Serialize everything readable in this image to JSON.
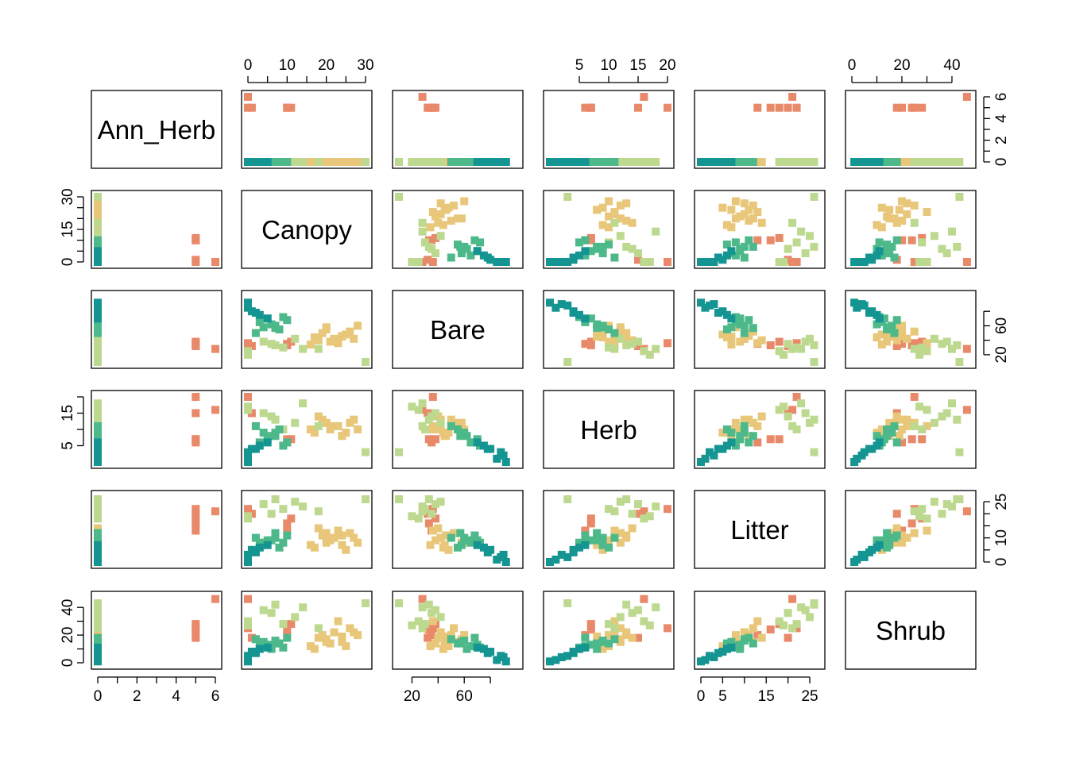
{
  "colors": {
    "orange": "#E8896A",
    "yellow": "#E8C77A",
    "light_green": "#BDD98F",
    "green": "#4DB98A",
    "teal": "#159592"
  },
  "chart_data": {
    "type": "scatter",
    "variables": [
      "Ann_Herb",
      "Canopy",
      "Bare",
      "Herb",
      "Litter",
      "Shrub"
    ],
    "ranges": {
      "Ann_Herb": [
        0,
        6
      ],
      "Canopy": [
        0,
        30
      ],
      "Bare": [
        10,
        100
      ],
      "Herb": [
        0,
        20
      ],
      "Litter": [
        0,
        27
      ],
      "Shrub": [
        0,
        47
      ]
    },
    "ticks": {
      "Ann_Herb": {
        "values": [
          0,
          1,
          2,
          3,
          4,
          5,
          6
        ],
        "labels": [
          "0",
          "",
          "2",
          "",
          "4",
          "",
          "6"
        ]
      },
      "Canopy": {
        "values": [
          0,
          5,
          10,
          15,
          20,
          25,
          30
        ],
        "labels": [
          "0",
          "",
          "10",
          "",
          "20",
          "",
          "30"
        ],
        "left_labels": [
          "0",
          "",
          "",
          "15",
          "",
          "",
          "30"
        ]
      },
      "Bare": {
        "values": [
          20,
          40,
          60,
          80
        ],
        "labels": [
          "20",
          "",
          "60",
          ""
        ]
      },
      "Herb": {
        "values": [
          5,
          10,
          15,
          20
        ],
        "labels": [
          "5",
          "10",
          "15",
          "20"
        ],
        "left_labels": [
          "5",
          "",
          "15",
          ""
        ]
      },
      "Litter": {
        "values": [
          0,
          5,
          10,
          15,
          20,
          25
        ],
        "labels": [
          "0",
          "5",
          "",
          "15",
          "",
          "25"
        ],
        "right_labels": [
          "0",
          "",
          "10",
          "",
          "",
          "25"
        ]
      },
      "Shrub": {
        "values": [
          0,
          10,
          20,
          30,
          40
        ],
        "labels": [
          "0",
          "",
          "20",
          "",
          "40"
        ]
      }
    },
    "groups": [
      {
        "color": "orange",
        "points": [
          [
            5,
            10,
            35,
            6,
            13,
            20
          ],
          [
            5,
            10,
            33,
            7,
            16,
            24
          ],
          [
            5,
            11,
            38,
            7,
            18,
            28
          ],
          [
            5,
            1,
            32,
            15,
            20,
            18
          ],
          [
            5,
            0,
            36,
            20,
            22,
            25
          ],
          [
            6,
            0,
            28,
            16,
            21,
            46
          ]
        ]
      },
      {
        "color": "yellow",
        "points": [
          [
            0,
            28,
            60,
            10,
            8,
            20
          ],
          [
            0,
            20,
            55,
            12,
            12,
            15
          ],
          [
            0,
            25,
            48,
            9,
            5,
            12
          ],
          [
            0,
            22,
            42,
            11,
            10,
            22
          ],
          [
            0,
            18,
            40,
            14,
            14,
            18
          ],
          [
            0,
            24,
            45,
            8,
            7,
            15
          ],
          [
            0,
            19,
            50,
            13,
            11,
            20
          ],
          [
            0,
            21,
            38,
            10,
            9,
            14
          ],
          [
            0,
            26,
            52,
            12,
            12,
            25
          ],
          [
            0,
            17,
            44,
            9,
            6,
            10
          ],
          [
            0,
            23,
            36,
            11,
            13,
            30
          ],
          [
            0,
            27,
            42,
            13,
            10,
            22
          ],
          [
            0,
            20,
            58,
            12,
            8,
            17
          ],
          [
            0,
            16,
            34,
            10,
            7,
            12
          ],
          [
            0,
            24,
            46,
            8,
            11,
            19
          ]
        ]
      },
      {
        "color": "light_green",
        "points": [
          [
            0,
            30,
            10,
            3,
            26,
            43
          ],
          [
            0,
            14,
            28,
            18,
            23,
            40
          ],
          [
            0,
            6,
            35,
            14,
            20,
            36
          ],
          [
            0,
            0,
            25,
            16,
            18,
            30
          ],
          [
            0,
            12,
            42,
            12,
            25,
            33
          ],
          [
            0,
            9,
            30,
            10,
            22,
            28
          ],
          [
            0,
            4,
            38,
            15,
            24,
            38
          ],
          [
            0,
            0,
            20,
            17,
            19,
            27
          ],
          [
            0,
            18,
            28,
            11,
            21,
            25
          ],
          [
            0,
            7,
            33,
            13,
            26,
            42
          ]
        ]
      },
      {
        "color": "green",
        "points": [
          [
            0,
            5,
            70,
            7,
            9,
            13
          ],
          [
            0,
            7,
            60,
            9,
            10,
            16
          ],
          [
            0,
            3,
            65,
            6,
            8,
            12
          ],
          [
            0,
            8,
            55,
            10,
            6,
            14
          ],
          [
            0,
            6,
            62,
            8,
            9,
            10
          ],
          [
            0,
            10,
            68,
            6,
            11,
            18
          ],
          [
            0,
            4,
            58,
            9,
            7,
            15
          ],
          [
            0,
            9,
            72,
            5,
            8,
            11
          ],
          [
            0,
            2,
            50,
            11,
            10,
            17
          ],
          [
            0,
            7,
            57,
            8,
            12,
            14
          ]
        ]
      },
      {
        "color": "teal",
        "points": [
          [
            0,
            0,
            90,
            2,
            3,
            4
          ],
          [
            0,
            1,
            80,
            4,
            5,
            8
          ],
          [
            0,
            0,
            85,
            1,
            1,
            2
          ],
          [
            0,
            3,
            75,
            5,
            6,
            10
          ],
          [
            0,
            0,
            92,
            0,
            0,
            1
          ],
          [
            0,
            2,
            78,
            4,
            4,
            7
          ],
          [
            0,
            5,
            70,
            6,
            7,
            11
          ],
          [
            0,
            0,
            88,
            3,
            2,
            5
          ]
        ]
      }
    ]
  }
}
